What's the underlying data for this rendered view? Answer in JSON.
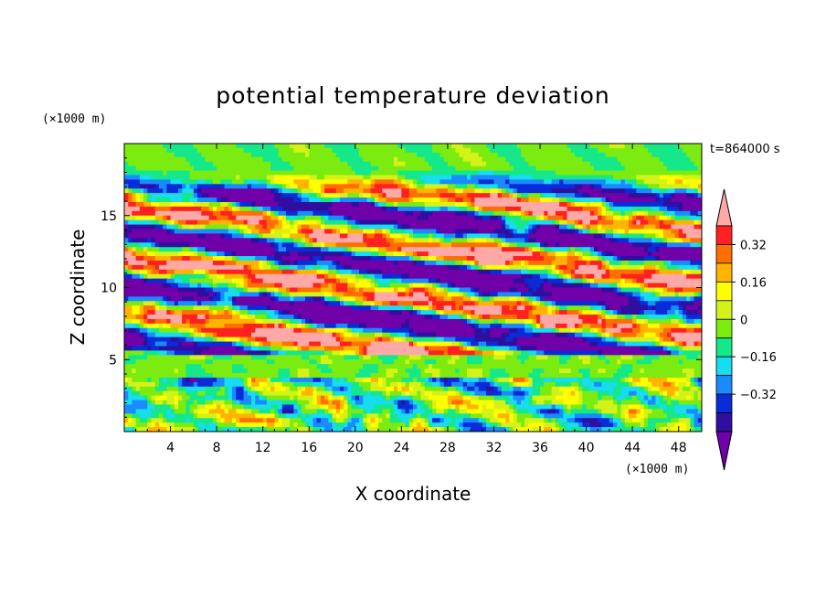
{
  "chart_data": {
    "type": "heatmap",
    "title": "potential temperature deviation",
    "xlabel": "X coordinate",
    "ylabel": "Z coordinate",
    "x_unit": "(×1000 m)",
    "y_unit": "(×1000 m)",
    "time_label": "t=864000 s",
    "xlim": [
      0,
      50
    ],
    "ylim": [
      0,
      20
    ],
    "x_ticks": [
      4,
      8,
      12,
      16,
      20,
      24,
      28,
      32,
      36,
      40,
      44,
      48
    ],
    "y_ticks": [
      5,
      10,
      15
    ],
    "colorbar": {
      "levels": [
        -0.48,
        -0.4,
        -0.32,
        -0.24,
        -0.16,
        -0.08,
        0,
        0.08,
        0.16,
        0.24,
        0.32,
        0.4,
        0.48
      ],
      "tick_labels": [
        "0.32",
        "0.16",
        "0",
        "−0.16",
        "−0.32"
      ],
      "tick_values": [
        0.32,
        0.16,
        0,
        -0.16,
        -0.32
      ],
      "colors": [
        "#7000a8",
        "#2f0fa0",
        "#0a2cd8",
        "#1a8aff",
        "#16ddf0",
        "#14e88a",
        "#7cec10",
        "#d4f218",
        "#ffff00",
        "#ffb400",
        "#ff6e00",
        "#ff2020",
        "#ffa8a8"
      ]
    }
  }
}
